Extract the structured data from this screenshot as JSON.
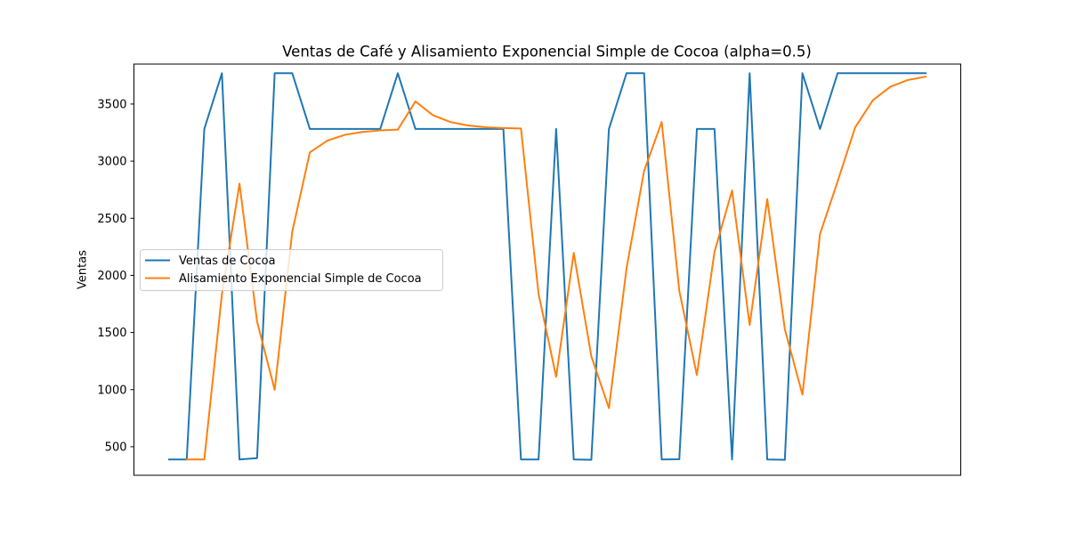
{
  "chart_data": {
    "type": "line",
    "title": "Ventas de Café y Alisamiento Exponencial Simple de Cocoa (alpha=0.5)",
    "xlabel": "",
    "ylabel": "Ventas",
    "ylim": [
      250,
      3850
    ],
    "yticks": [
      500,
      1000,
      1500,
      2000,
      2500,
      3000,
      3500
    ],
    "x": [
      1,
      2,
      3,
      4,
      5,
      6,
      7,
      8,
      9,
      10,
      11,
      12,
      13,
      14,
      15,
      16,
      17,
      18,
      19,
      20,
      21,
      22,
      23,
      24,
      25,
      26,
      27,
      28,
      29,
      30,
      31,
      32,
      33,
      34,
      35,
      36,
      37,
      38,
      39,
      40,
      41,
      42,
      43,
      44
    ],
    "xlim": [
      -1,
      46
    ],
    "grid": false,
    "legend_position": "center-left",
    "series": [
      {
        "name": "Ventas de Cocoa",
        "color": "#1f77b4",
        "values": [
          388,
          388,
          3282,
          3770,
          388,
          400,
          3770,
          3770,
          3282,
          3282,
          3282,
          3282,
          3282,
          3770,
          3282,
          3282,
          3282,
          3282,
          3282,
          3282,
          388,
          388,
          3282,
          388,
          385,
          3282,
          3770,
          3770,
          388,
          390,
          3282,
          3282,
          388,
          3770,
          388,
          385,
          3770,
          3282,
          3770,
          3770,
          3770,
          3770,
          3770,
          3770
        ]
      },
      {
        "name": "Alisamiento Exponencial Simple de Cocoa",
        "color": "#ff7f0e",
        "values": [
          null,
          388,
          388,
          1835,
          2803,
          1595,
          998,
          2384,
          3077,
          3180,
          3231,
          3256,
          3269,
          3276,
          3523,
          3402,
          3342,
          3312,
          3297,
          3290,
          3286,
          1837,
          1112,
          2197,
          1292,
          838,
          2060,
          2915,
          3343,
          1865,
          1127,
          2205,
          2743,
          1566,
          2668,
          1528,
          956,
          2363,
          2823,
          3296,
          3533,
          3652,
          3711,
          3740
        ]
      }
    ]
  }
}
